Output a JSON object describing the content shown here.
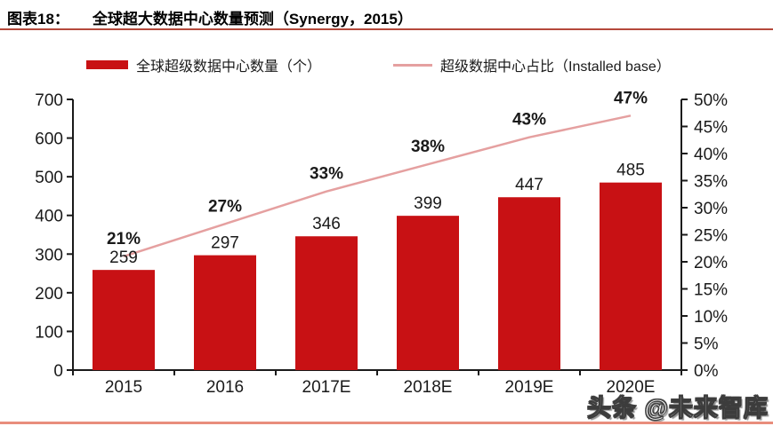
{
  "page": {
    "figure_label": "图表18：",
    "title": "全球超大数据中心数量预测（Synergy，2015）",
    "watermark": "头条 @未来智库"
  },
  "legend": {
    "bar_label": "全球超级数据中心数量（个）",
    "line_label": "超级数据中心占比（Installed base）"
  },
  "colors": {
    "bar": "#C81114",
    "line": "#E5A0A0",
    "axis": "#1A1A1A",
    "text": "#1A1A1A",
    "title_underline": "#B5493B",
    "bottom_rule": "#E88D7C"
  },
  "chart_data": {
    "type": "bar+line",
    "title": "全球超大数据中心数量预测（Synergy，2015）",
    "categories": [
      "2015",
      "2016",
      "2017E",
      "2018E",
      "2019E",
      "2020E"
    ],
    "series": [
      {
        "name": "全球超级数据中心数量（个）",
        "type": "bar",
        "axis": "left",
        "values": [
          259,
          297,
          346,
          399,
          447,
          485
        ],
        "labels": [
          "259",
          "297",
          "346",
          "399",
          "447",
          "485"
        ]
      },
      {
        "name": "超级数据中心占比（Installed base）",
        "type": "line",
        "axis": "right",
        "values": [
          21,
          27,
          33,
          38,
          43,
          47
        ],
        "labels": [
          "21%",
          "27%",
          "33%",
          "38%",
          "43%",
          "47%"
        ]
      }
    ],
    "left_axis": {
      "min": 0,
      "max": 700,
      "step": 100,
      "tick_labels": [
        "0",
        "100",
        "200",
        "300",
        "400",
        "500",
        "600",
        "700"
      ]
    },
    "right_axis": {
      "min": 0,
      "max": 50,
      "step": 5,
      "tick_labels": [
        "0%",
        "5%",
        "10%",
        "15%",
        "20%",
        "25%",
        "30%",
        "35%",
        "40%",
        "45%",
        "50%"
      ]
    },
    "grid": false,
    "legend_position": "top"
  }
}
